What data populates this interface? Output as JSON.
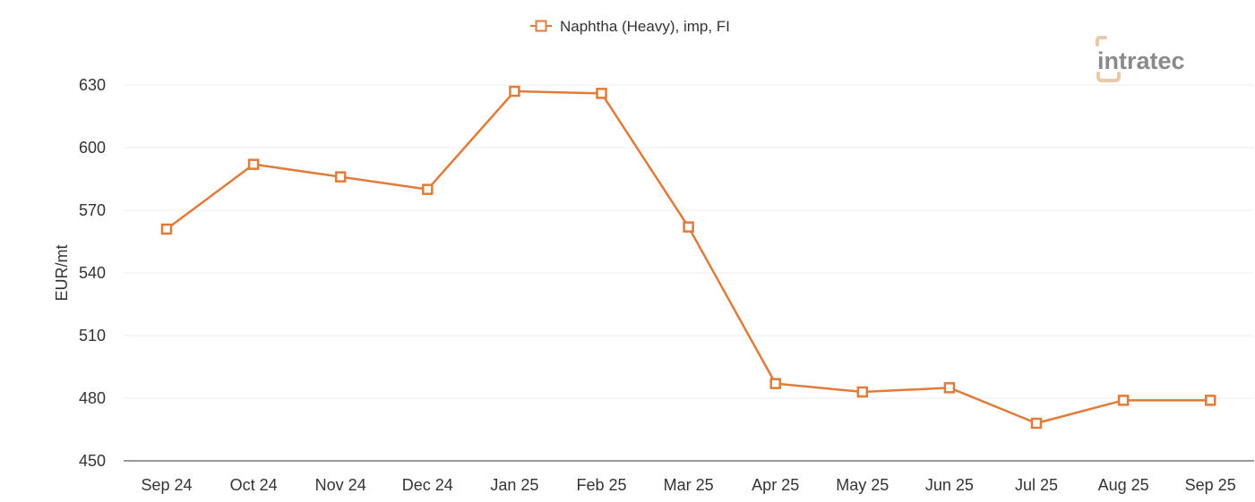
{
  "chart_data": {
    "type": "line",
    "categories": [
      "Sep 24",
      "Oct 24",
      "Nov 24",
      "Dec 24",
      "Jan 25",
      "Feb 25",
      "Mar 25",
      "Apr 25",
      "May 25",
      "Jun 25",
      "Jul 25",
      "Aug 25",
      "Sep 25"
    ],
    "series": [
      {
        "name": "Naphtha (Heavy), imp, FI",
        "values": [
          561,
          592,
          586,
          580,
          627,
          626,
          562,
          487,
          483,
          485,
          468,
          479,
          479
        ],
        "color": "#e07b39",
        "marker": "hollow-square"
      }
    ],
    "ylabel": "EUR/mt",
    "ylim": [
      450,
      630
    ],
    "yticks": [
      450,
      480,
      510,
      540,
      570,
      600,
      630
    ],
    "grid": true,
    "legend_position": "top-center"
  },
  "logo": {
    "text": "intratec",
    "colors": {
      "text": "#8a8a8a",
      "accent": "#e8c9a8"
    }
  }
}
